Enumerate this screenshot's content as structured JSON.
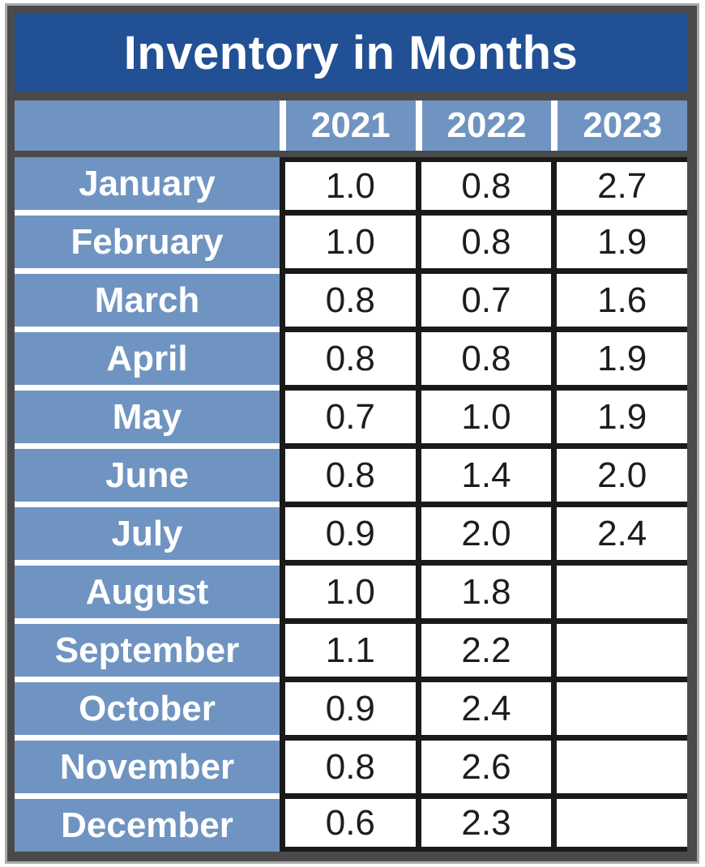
{
  "table": {
    "title": "Inventory in Months",
    "corner_label": "",
    "columns": [
      "2021",
      "2022",
      "2023"
    ],
    "rows": [
      {
        "month": "January",
        "values": [
          "1.0",
          "0.8",
          "2.7"
        ]
      },
      {
        "month": "February",
        "values": [
          "1.0",
          "0.8",
          "1.9"
        ]
      },
      {
        "month": "March",
        "values": [
          "0.8",
          "0.7",
          "1.6"
        ]
      },
      {
        "month": "April",
        "values": [
          "0.8",
          "0.8",
          "1.9"
        ]
      },
      {
        "month": "May",
        "values": [
          "0.7",
          "1.0",
          "1.9"
        ]
      },
      {
        "month": "June",
        "values": [
          "0.8",
          "1.4",
          "2.0"
        ]
      },
      {
        "month": "July",
        "values": [
          "0.9",
          "2.0",
          "2.4"
        ]
      },
      {
        "month": "August",
        "values": [
          "1.0",
          "1.8",
          ""
        ]
      },
      {
        "month": "September",
        "values": [
          "1.1",
          "2.2",
          ""
        ]
      },
      {
        "month": "October",
        "values": [
          "0.9",
          "2.4",
          ""
        ]
      },
      {
        "month": "November",
        "values": [
          "0.8",
          "2.6",
          ""
        ]
      },
      {
        "month": "December",
        "values": [
          "0.6",
          "2.3",
          ""
        ]
      }
    ]
  },
  "colors": {
    "title_bg": "#215095",
    "cell_blue": "#7094C1",
    "frame": "#4A4A4A",
    "grid_black": "#1A1A1A",
    "value_text": "#1D1D1D",
    "header_text": "#FFFFFF"
  },
  "chart_data": {
    "type": "table",
    "title": "Inventory in Months",
    "categories": [
      "January",
      "February",
      "March",
      "April",
      "May",
      "June",
      "July",
      "August",
      "September",
      "October",
      "November",
      "December"
    ],
    "series": [
      {
        "name": "2021",
        "values": [
          1.0,
          1.0,
          0.8,
          0.8,
          0.7,
          0.8,
          0.9,
          1.0,
          1.1,
          0.9,
          0.8,
          0.6
        ]
      },
      {
        "name": "2022",
        "values": [
          0.8,
          0.8,
          0.7,
          0.8,
          1.0,
          1.4,
          2.0,
          1.8,
          2.2,
          2.4,
          2.6,
          2.3
        ]
      },
      {
        "name": "2023",
        "values": [
          2.7,
          1.9,
          1.6,
          1.9,
          1.9,
          2.0,
          2.4,
          null,
          null,
          null,
          null,
          null
        ]
      }
    ]
  }
}
